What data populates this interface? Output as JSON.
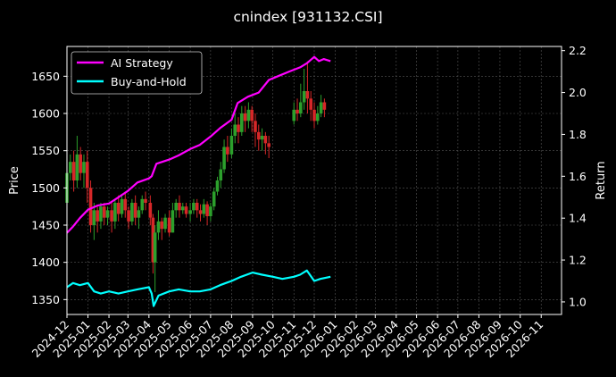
{
  "chart_data": {
    "type": "line",
    "title": "cnindex [931132.CSI]",
    "ylabel_left": "Price",
    "ylabel_right": "Return",
    "ylim_left": [
      1330,
      1690
    ],
    "yticks_left": [
      1350,
      1400,
      1450,
      1500,
      1550,
      1600,
      1650
    ],
    "ylim_right": [
      0.94,
      2.22
    ],
    "yticks_right": [
      1.0,
      1.2,
      1.4,
      1.6,
      1.8,
      2.0,
      2.2
    ],
    "ytick_labels_right": [
      "1.0",
      "1.2",
      "1.4",
      "1.6",
      "1.8",
      "2.0",
      "2.2"
    ],
    "x_ticks": [
      "2024-12",
      "2025-01",
      "2025-02",
      "2025-03",
      "2025-04",
      "2025-05",
      "2025-06",
      "2025-07",
      "2025-08",
      "2025-09",
      "2025-10",
      "2025-11",
      "2025-12",
      "2026-01",
      "2026-02",
      "2026-03",
      "2026-04",
      "2026-05",
      "2026-06",
      "2026-07",
      "2026-08",
      "2026-09",
      "2026-10",
      "2026-11"
    ],
    "grid": true,
    "legend_position": "top-left",
    "colors": {
      "up_candle": "#2ca02c",
      "down_candle": "#d62728",
      "ai_strategy": "#ff00ff",
      "buy_and_hold": "#00ffff",
      "background": "#000000",
      "grid": "#555555"
    },
    "series": [
      {
        "name": "AI Strategy",
        "axis": "right",
        "points": [
          [
            "2024-12-01",
            1.33
          ],
          [
            "2024-12-10",
            1.36
          ],
          [
            "2024-12-20",
            1.4
          ],
          [
            "2025-01-01",
            1.44
          ],
          [
            "2025-01-15",
            1.46
          ],
          [
            "2025-02-01",
            1.47
          ],
          [
            "2025-02-15",
            1.5
          ],
          [
            "2025-03-01",
            1.53
          ],
          [
            "2025-03-15",
            1.57
          ],
          [
            "2025-04-01",
            1.59
          ],
          [
            "2025-04-05",
            1.6
          ],
          [
            "2025-04-12",
            1.66
          ],
          [
            "2025-05-01",
            1.68
          ],
          [
            "2025-05-15",
            1.7
          ],
          [
            "2025-06-01",
            1.73
          ],
          [
            "2025-06-15",
            1.75
          ],
          [
            "2025-07-01",
            1.79
          ],
          [
            "2025-07-15",
            1.83
          ],
          [
            "2025-08-01",
            1.87
          ],
          [
            "2025-08-10",
            1.95
          ],
          [
            "2025-08-25",
            1.98
          ],
          [
            "2025-09-10",
            2.0
          ],
          [
            "2025-09-25",
            2.06
          ],
          [
            "2025-10-10",
            2.08
          ],
          [
            "2025-10-25",
            2.1
          ],
          [
            "2025-11-10",
            2.12
          ],
          [
            "2025-11-20",
            2.14
          ],
          [
            "2025-12-01",
            2.17
          ],
          [
            "2025-12-08",
            2.15
          ],
          [
            "2025-12-15",
            2.16
          ],
          [
            "2025-12-25",
            2.15
          ]
        ]
      },
      {
        "name": "Buy-and-Hold",
        "axis": "right",
        "points": [
          [
            "2024-12-01",
            1.07
          ],
          [
            "2024-12-10",
            1.09
          ],
          [
            "2024-12-20",
            1.08
          ],
          [
            "2025-01-01",
            1.09
          ],
          [
            "2025-01-10",
            1.05
          ],
          [
            "2025-01-20",
            1.04
          ],
          [
            "2025-02-01",
            1.05
          ],
          [
            "2025-02-15",
            1.04
          ],
          [
            "2025-03-01",
            1.05
          ],
          [
            "2025-03-15",
            1.06
          ],
          [
            "2025-04-01",
            1.07
          ],
          [
            "2025-04-05",
            1.04
          ],
          [
            "2025-04-08",
            0.98
          ],
          [
            "2025-04-15",
            1.03
          ],
          [
            "2025-05-01",
            1.05
          ],
          [
            "2025-05-15",
            1.06
          ],
          [
            "2025-06-01",
            1.05
          ],
          [
            "2025-06-15",
            1.05
          ],
          [
            "2025-07-01",
            1.06
          ],
          [
            "2025-07-15",
            1.08
          ],
          [
            "2025-08-01",
            1.1
          ],
          [
            "2025-08-15",
            1.12
          ],
          [
            "2025-09-01",
            1.14
          ],
          [
            "2025-09-15",
            1.13
          ],
          [
            "2025-10-01",
            1.12
          ],
          [
            "2025-10-15",
            1.11
          ],
          [
            "2025-11-01",
            1.12
          ],
          [
            "2025-11-10",
            1.13
          ],
          [
            "2025-11-20",
            1.15
          ],
          [
            "2025-12-01",
            1.1
          ],
          [
            "2025-12-10",
            1.11
          ],
          [
            "2025-12-25",
            1.12
          ]
        ]
      }
    ],
    "candles": [
      [
        "2024-12-01",
        1480,
        1520,
        1470,
        1530
      ],
      [
        "2024-12-06",
        1520,
        1535,
        1510,
        1545
      ],
      [
        "2024-12-11",
        1535,
        1510,
        1495,
        1550
      ],
      [
        "2024-12-16",
        1510,
        1545,
        1500,
        1570
      ],
      [
        "2024-12-21",
        1545,
        1520,
        1510,
        1555
      ],
      [
        "2024-12-26",
        1520,
        1535,
        1500,
        1545
      ],
      [
        "2024-12-31",
        1535,
        1500,
        1480,
        1550
      ],
      [
        "2025-01-05",
        1500,
        1450,
        1440,
        1510
      ],
      [
        "2025-01-10",
        1450,
        1470,
        1430,
        1480
      ],
      [
        "2025-01-15",
        1470,
        1455,
        1440,
        1475
      ],
      [
        "2025-01-20",
        1455,
        1475,
        1445,
        1480
      ],
      [
        "2025-01-25",
        1475,
        1460,
        1450,
        1480
      ],
      [
        "2025-01-30",
        1460,
        1470,
        1450,
        1475
      ],
      [
        "2025-02-05",
        1470,
        1455,
        1440,
        1480
      ],
      [
        "2025-02-10",
        1455,
        1480,
        1445,
        1485
      ],
      [
        "2025-02-15",
        1480,
        1465,
        1455,
        1490
      ],
      [
        "2025-02-20",
        1465,
        1485,
        1460,
        1490
      ],
      [
        "2025-02-25",
        1485,
        1470,
        1460,
        1495
      ],
      [
        "2025-03-02",
        1470,
        1455,
        1445,
        1475
      ],
      [
        "2025-03-07",
        1455,
        1480,
        1450,
        1485
      ],
      [
        "2025-03-12",
        1480,
        1460,
        1450,
        1490
      ],
      [
        "2025-03-17",
        1460,
        1470,
        1445,
        1475
      ],
      [
        "2025-03-22",
        1470,
        1485,
        1465,
        1490
      ],
      [
        "2025-03-27",
        1485,
        1480,
        1470,
        1495
      ],
      [
        "2025-04-03",
        1480,
        1460,
        1450,
        1490
      ],
      [
        "2025-04-07",
        1460,
        1400,
        1385,
        1465
      ],
      [
        "2025-04-10",
        1400,
        1440,
        1360,
        1450
      ],
      [
        "2025-04-15",
        1440,
        1455,
        1430,
        1470
      ],
      [
        "2025-04-20",
        1455,
        1445,
        1430,
        1460
      ],
      [
        "2025-04-25",
        1445,
        1460,
        1440,
        1465
      ],
      [
        "2025-05-01",
        1460,
        1440,
        1435,
        1470
      ],
      [
        "2025-05-06",
        1440,
        1470,
        1440,
        1480
      ],
      [
        "2025-05-11",
        1470,
        1480,
        1460,
        1485
      ],
      [
        "2025-05-16",
        1480,
        1470,
        1460,
        1490
      ],
      [
        "2025-05-21",
        1470,
        1475,
        1465,
        1480
      ],
      [
        "2025-05-26",
        1475,
        1465,
        1460,
        1480
      ],
      [
        "2025-06-01",
        1465,
        1470,
        1455,
        1480
      ],
      [
        "2025-06-06",
        1470,
        1480,
        1465,
        1485
      ],
      [
        "2025-06-11",
        1480,
        1470,
        1460,
        1485
      ],
      [
        "2025-06-16",
        1470,
        1465,
        1455,
        1478
      ],
      [
        "2025-06-21",
        1465,
        1478,
        1460,
        1485
      ],
      [
        "2025-06-26",
        1478,
        1462,
        1450,
        1482
      ],
      [
        "2025-07-01",
        1462,
        1475,
        1455,
        1480
      ],
      [
        "2025-07-06",
        1475,
        1495,
        1470,
        1500
      ],
      [
        "2025-07-11",
        1495,
        1510,
        1490,
        1515
      ],
      [
        "2025-07-16",
        1510,
        1525,
        1500,
        1535
      ],
      [
        "2025-07-21",
        1525,
        1555,
        1520,
        1565
      ],
      [
        "2025-07-26",
        1555,
        1545,
        1535,
        1570
      ],
      [
        "2025-08-01",
        1545,
        1570,
        1540,
        1580
      ],
      [
        "2025-08-06",
        1570,
        1585,
        1560,
        1600
      ],
      [
        "2025-08-11",
        1585,
        1575,
        1560,
        1595
      ],
      [
        "2025-08-16",
        1575,
        1600,
        1570,
        1610
      ],
      [
        "2025-08-21",
        1600,
        1590,
        1575,
        1610
      ],
      [
        "2025-08-26",
        1590,
        1605,
        1580,
        1615
      ],
      [
        "2025-08-31",
        1605,
        1590,
        1575,
        1610
      ],
      [
        "2025-09-05",
        1590,
        1575,
        1555,
        1600
      ],
      [
        "2025-09-10",
        1575,
        1565,
        1550,
        1585
      ],
      [
        "2025-09-15",
        1565,
        1570,
        1550,
        1580
      ],
      [
        "2025-09-20",
        1570,
        1560,
        1545,
        1575
      ],
      [
        "2025-09-25",
        1560,
        1555,
        1540,
        1570
      ],
      [
        "2025-11-01",
        1590,
        1605,
        1585,
        1615
      ],
      [
        "2025-11-06",
        1605,
        1600,
        1590,
        1620
      ],
      [
        "2025-11-11",
        1600,
        1615,
        1595,
        1640
      ],
      [
        "2025-11-16",
        1615,
        1630,
        1605,
        1660
      ],
      [
        "2025-11-21",
        1630,
        1620,
        1600,
        1670
      ],
      [
        "2025-11-26",
        1620,
        1605,
        1590,
        1630
      ],
      [
        "2025-12-01",
        1605,
        1590,
        1580,
        1615
      ],
      [
        "2025-12-06",
        1590,
        1600,
        1585,
        1610
      ],
      [
        "2025-12-11",
        1600,
        1615,
        1595,
        1625
      ],
      [
        "2025-12-16",
        1615,
        1605,
        1595,
        1620
      ]
    ]
  }
}
